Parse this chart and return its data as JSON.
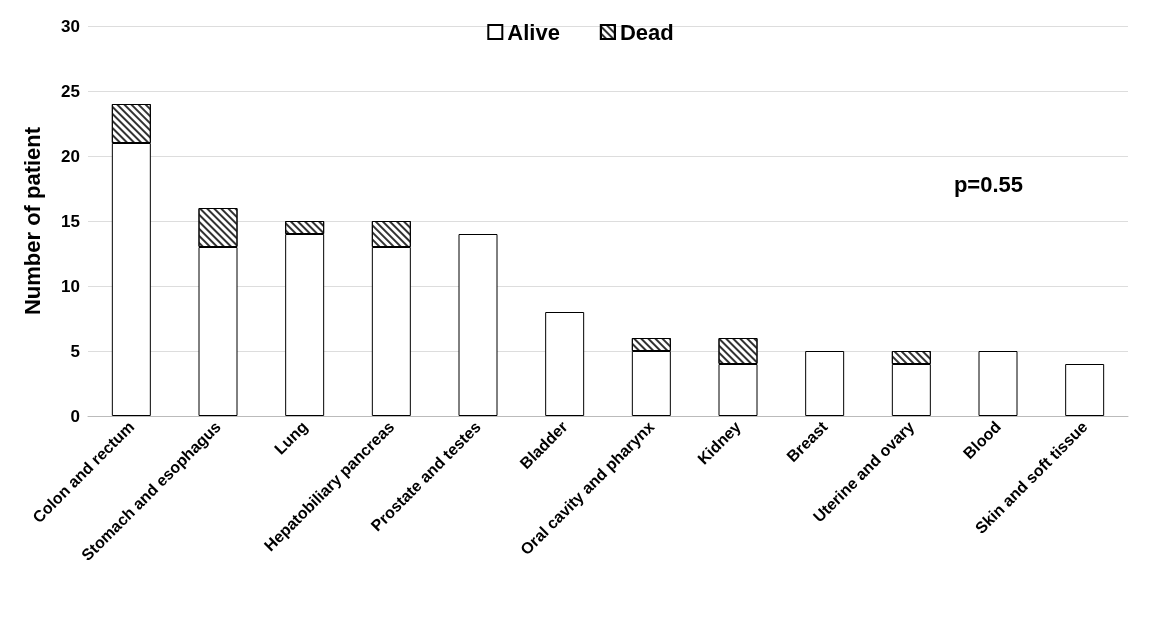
{
  "chart_data": {
    "type": "bar",
    "ylabel": "Number of patient",
    "categories": [
      "Colon and rectum",
      "Stomach and esophagus",
      "Lung",
      "Hepatobiliary pancreas",
      "Prostate and testes",
      "Bladder",
      "Oral cavity and pharynx",
      "Kidney",
      "Breast",
      "Uterine and ovary",
      "Blood",
      "Skin and soft tissue"
    ],
    "series": [
      {
        "name": "Alive",
        "color": "#ffffff",
        "values": [
          21,
          13,
          14,
          13,
          14,
          8,
          5,
          4,
          5,
          4,
          5,
          4
        ]
      },
      {
        "name": "Dead",
        "color": "#ffffff",
        "values": [
          3,
          3,
          1,
          2,
          0,
          0,
          1,
          2,
          0,
          1,
          0,
          0
        ]
      }
    ],
    "stacked": true,
    "ylim": [
      0,
      30
    ],
    "yticks": [
      0,
      5,
      10,
      15,
      20,
      25,
      30
    ],
    "grid": "y",
    "legend": "top",
    "annotations": [
      "p=0.55"
    ]
  }
}
